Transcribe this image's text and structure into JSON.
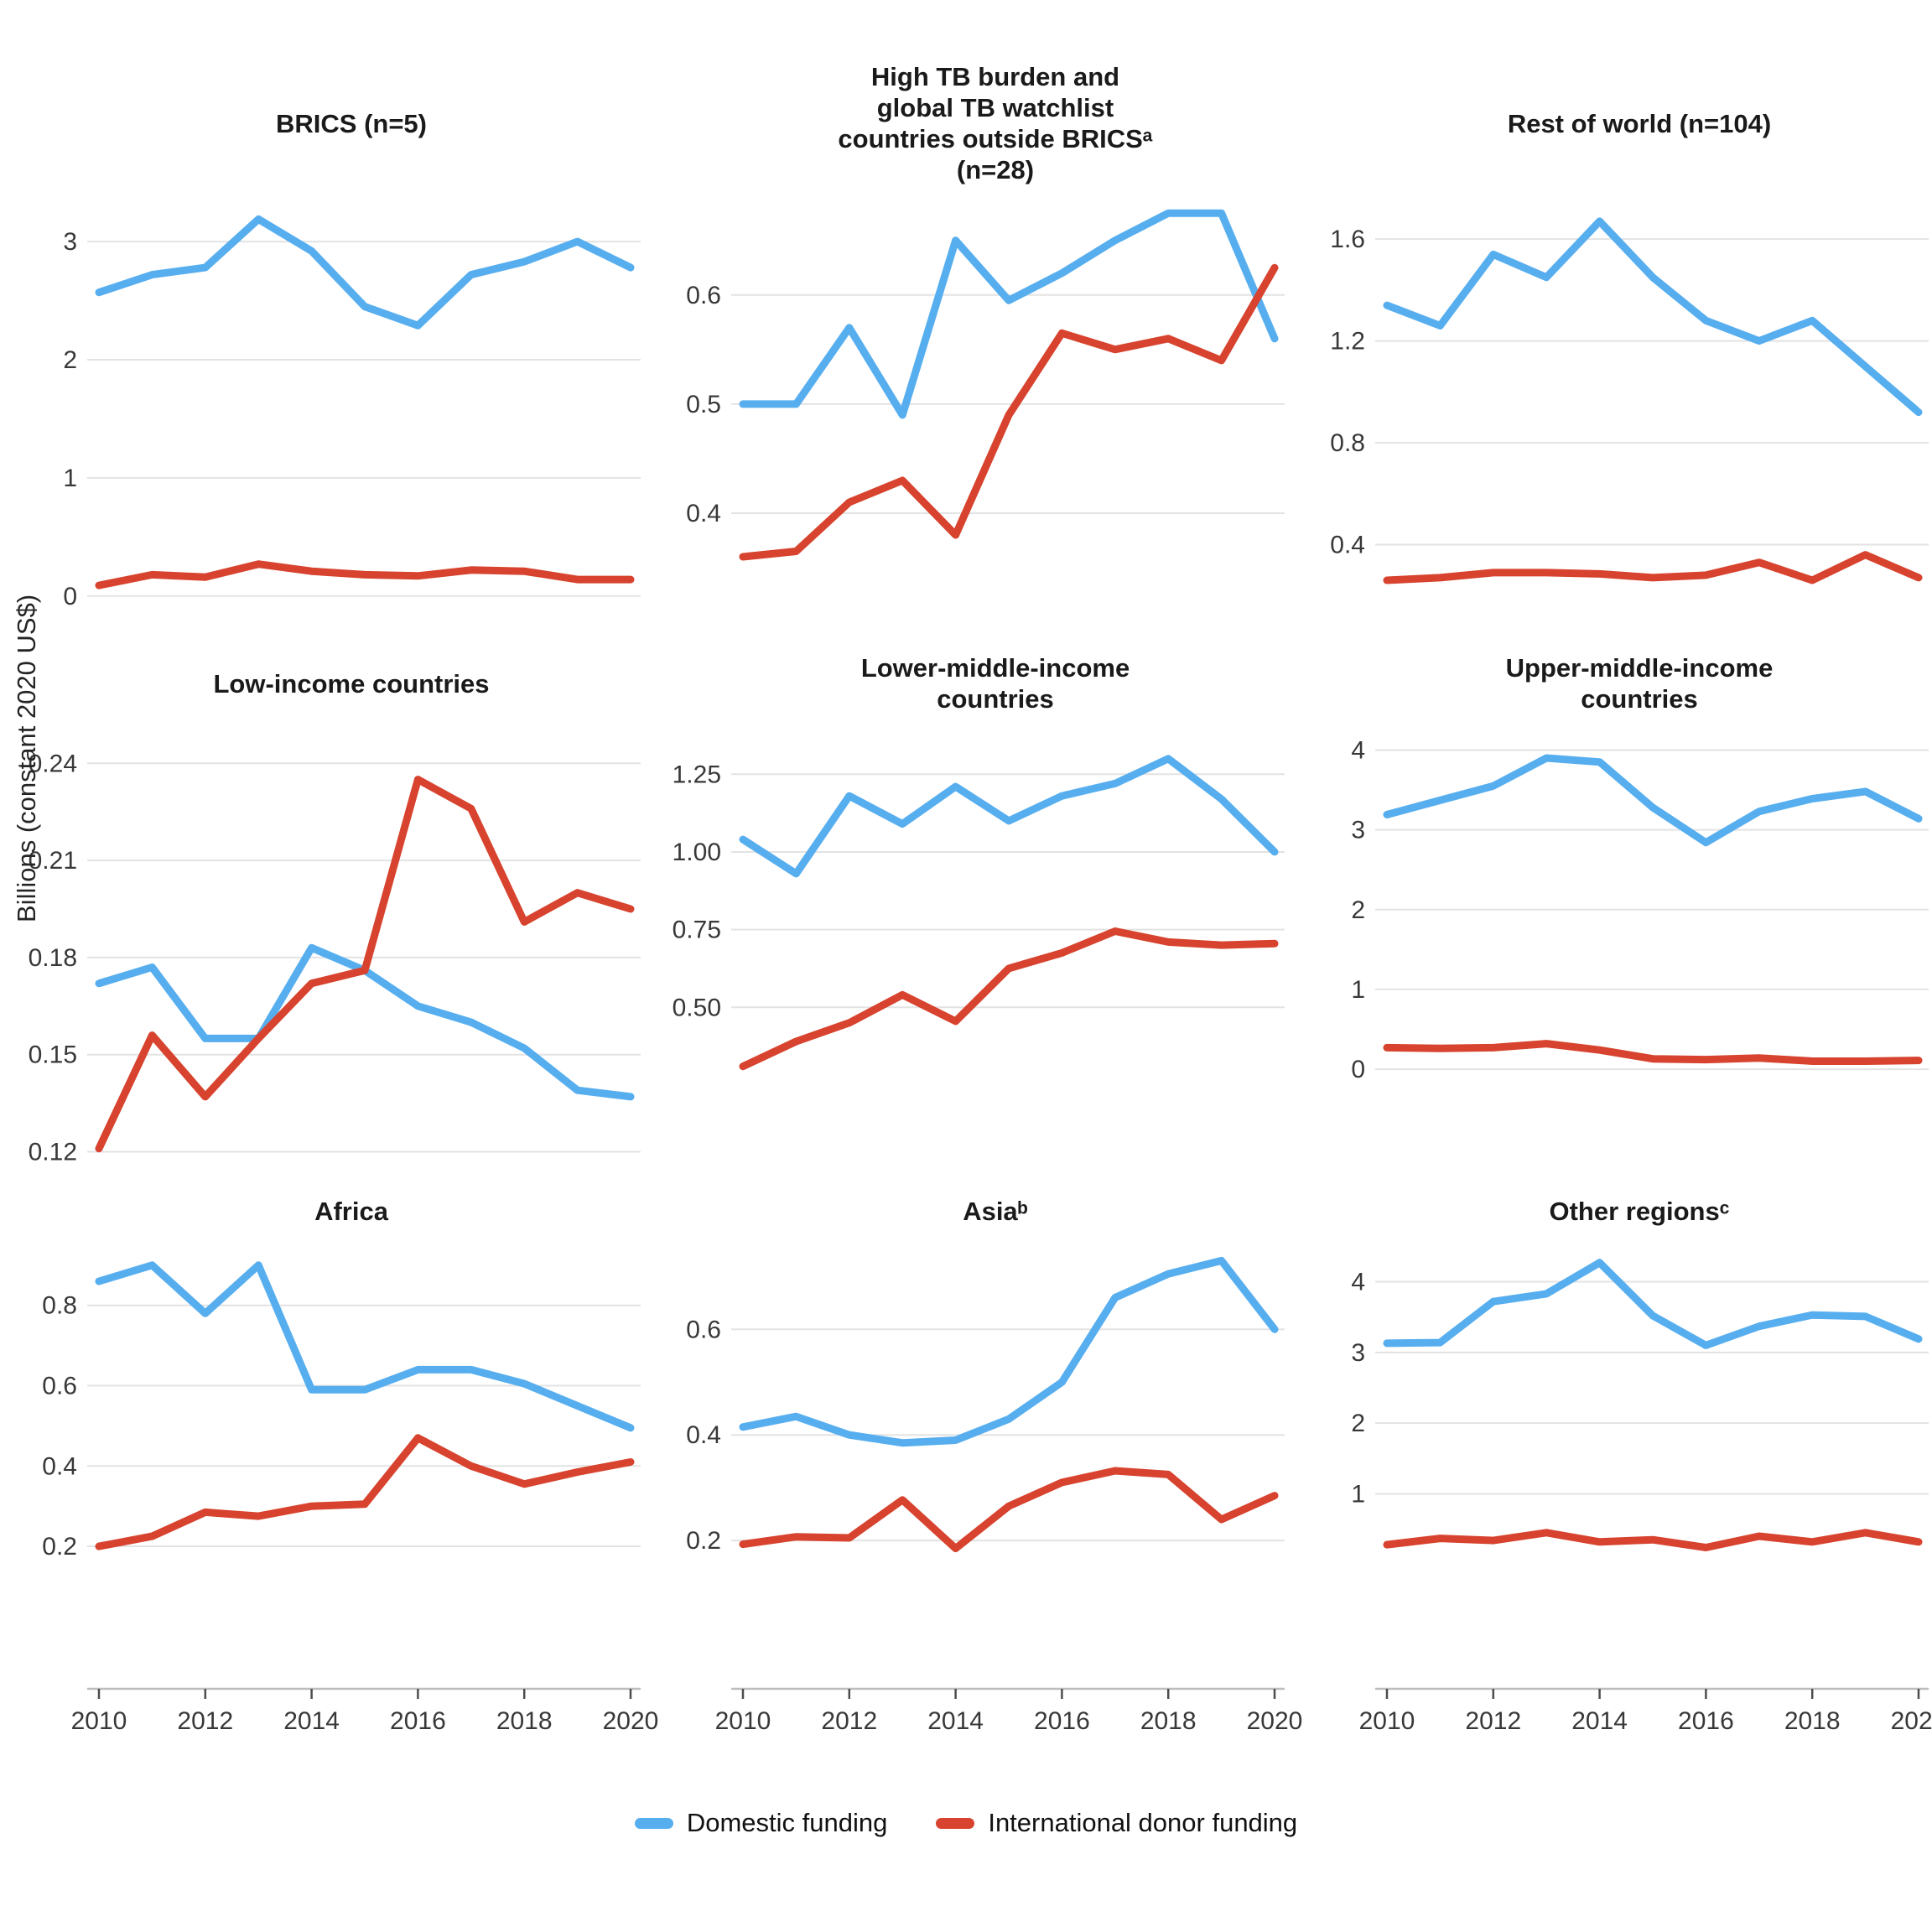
{
  "figure": {
    "y_axis_title": "Billions (constant 2020 US$)",
    "colors": {
      "domestic": "#57aeef",
      "international": "#d7432e",
      "gridline": "#e3e3e3",
      "axis_line": "#bdbdbd",
      "tick_mark": "#4d4d4d",
      "tick_label": "#383838"
    },
    "legend": [
      {
        "label": "Domestic funding",
        "color": "#57aeef"
      },
      {
        "label": "International donor funding",
        "color": "#d7432e"
      }
    ],
    "x_axis": {
      "tick_years": [
        2010,
        2012,
        2014,
        2016,
        2018,
        2020
      ],
      "tick_labels": [
        "2010",
        "2012",
        "2014",
        "2016",
        "2018",
        "2020"
      ]
    }
  },
  "chart_data": [
    {
      "type": "line",
      "title": "BRICS (n=5)",
      "x": [
        2010,
        2011,
        2012,
        2013,
        2014,
        2015,
        2016,
        2017,
        2018,
        2019,
        2020
      ],
      "yticks": [
        {
          "label": "3",
          "value": 3
        },
        {
          "label": "2",
          "value": 2
        },
        {
          "label": "1",
          "value": 1
        },
        {
          "label": "0",
          "value": 0
        }
      ],
      "ylim": [
        -0.25,
        3.37
      ],
      "show_x_axis": false,
      "series": [
        {
          "name": "Domestic funding",
          "color": "#57aeef",
          "values": [
            2.57,
            2.72,
            2.78,
            3.19,
            2.92,
            2.45,
            2.29,
            2.72,
            2.83,
            3.0,
            2.78
          ]
        },
        {
          "name": "International donor funding",
          "color": "#d7432e",
          "values": [
            0.09,
            0.18,
            0.16,
            0.27,
            0.21,
            0.18,
            0.17,
            0.22,
            0.21,
            0.14,
            0.14
          ]
        }
      ]
    },
    {
      "type": "line",
      "title": "High TB burden and\nglobal TB watchlist\ncountries outside BRICSᵃ\n(n=28)",
      "x": [
        2010,
        2011,
        2012,
        2013,
        2014,
        2015,
        2016,
        2017,
        2018,
        2019,
        2020
      ],
      "yticks": [
        {
          "label": "0.6",
          "value": 0.6
        },
        {
          "label": "0.5",
          "value": 0.5
        },
        {
          "label": "0.4",
          "value": 0.4
        }
      ],
      "ylim": [
        0.297,
        0.689
      ],
      "show_x_axis": false,
      "series": [
        {
          "name": "Domestic funding",
          "color": "#57aeef",
          "values": [
            0.5,
            0.5,
            0.57,
            0.49,
            0.65,
            0.595,
            0.62,
            0.65,
            0.675,
            0.675,
            0.56
          ]
        },
        {
          "name": "International donor funding",
          "color": "#d7432e",
          "values": [
            0.36,
            0.365,
            0.41,
            0.43,
            0.38,
            0.49,
            0.565,
            0.55,
            0.56,
            0.54,
            0.625
          ]
        }
      ]
    },
    {
      "type": "line",
      "title": "Rest of world (n=104)",
      "x": [
        2010,
        2011,
        2012,
        2013,
        2014,
        2015,
        2016,
        2017,
        2018,
        2019,
        2020
      ],
      "yticks": [
        {
          "label": "1.6",
          "value": 1.6
        },
        {
          "label": "1.2",
          "value": 1.2
        },
        {
          "label": "0.8",
          "value": 0.8
        },
        {
          "label": "0.4",
          "value": 0.4
        }
      ],
      "ylim": [
        0.082,
        1.762
      ],
      "show_x_axis": false,
      "series": [
        {
          "name": "Domestic funding",
          "color": "#57aeef",
          "values": [
            1.34,
            1.26,
            1.54,
            1.45,
            1.67,
            1.45,
            1.28,
            1.2,
            1.28,
            1.1,
            0.92
          ]
        },
        {
          "name": "International donor funding",
          "color": "#d7432e",
          "values": [
            0.26,
            0.27,
            0.29,
            0.29,
            0.285,
            0.27,
            0.28,
            0.33,
            0.26,
            0.36,
            0.27
          ]
        }
      ]
    },
    {
      "type": "line",
      "title": "Low-income countries",
      "x": [
        2010,
        2011,
        2012,
        2013,
        2014,
        2015,
        2016,
        2017,
        2018,
        2019,
        2020
      ],
      "yticks": [
        {
          "label": "0.24",
          "value": 0.24
        },
        {
          "label": "0.21",
          "value": 0.21
        },
        {
          "label": "0.18",
          "value": 0.18
        },
        {
          "label": "0.15",
          "value": 0.15
        },
        {
          "label": "0.12",
          "value": 0.12
        }
      ],
      "ylim": [
        0.1147,
        0.2468
      ],
      "show_x_axis": false,
      "series": [
        {
          "name": "Domestic funding",
          "color": "#57aeef",
          "values": [
            0.172,
            0.177,
            0.155,
            0.155,
            0.183,
            0.176,
            0.165,
            0.16,
            0.152,
            0.139,
            0.137
          ]
        },
        {
          "name": "International donor funding",
          "color": "#d7432e",
          "values": [
            0.121,
            0.156,
            0.137,
            0.155,
            0.172,
            0.176,
            0.235,
            0.226,
            0.191,
            0.2,
            0.195
          ]
        }
      ]
    },
    {
      "type": "line",
      "title": "Lower-middle-income\ncountries",
      "x": [
        2010,
        2011,
        2012,
        2013,
        2014,
        2015,
        2016,
        2017,
        2018,
        2019,
        2020
      ],
      "yticks": [
        {
          "label": "1.25",
          "value": 1.25
        },
        {
          "label": "1.00",
          "value": 1.0
        },
        {
          "label": "0.75",
          "value": 0.75
        },
        {
          "label": "0.50",
          "value": 0.5
        }
      ],
      "ylim": [
        -0.02,
        1.356
      ],
      "show_x_axis": false,
      "series": [
        {
          "name": "Domestic funding",
          "color": "#57aeef",
          "values": [
            1.04,
            0.93,
            1.18,
            1.09,
            1.21,
            1.1,
            1.18,
            1.22,
            1.3,
            1.17,
            1.0
          ]
        },
        {
          "name": "International donor funding",
          "color": "#d7432e",
          "values": [
            0.31,
            0.39,
            0.45,
            0.54,
            0.455,
            0.625,
            0.675,
            0.745,
            0.71,
            0.7,
            0.705
          ]
        }
      ]
    },
    {
      "type": "line",
      "title": "Upper-middle-income\ncountries",
      "x": [
        2010,
        2011,
        2012,
        2013,
        2014,
        2015,
        2016,
        2017,
        2018,
        2019,
        2020
      ],
      "yticks": [
        {
          "label": "4",
          "value": 4
        },
        {
          "label": "3",
          "value": 3
        },
        {
          "label": "2",
          "value": 2
        },
        {
          "label": "1",
          "value": 1
        },
        {
          "label": "0",
          "value": 0
        }
      ],
      "ylim": [
        -1.25,
        4.11
      ],
      "show_x_axis": false,
      "series": [
        {
          "name": "Domestic funding",
          "color": "#57aeef",
          "values": [
            3.19,
            3.37,
            3.55,
            3.9,
            3.85,
            3.28,
            2.84,
            3.23,
            3.39,
            3.48,
            3.14
          ]
        },
        {
          "name": "International donor funding",
          "color": "#d7432e",
          "values": [
            0.27,
            0.26,
            0.27,
            0.32,
            0.24,
            0.13,
            0.12,
            0.14,
            0.1,
            0.1,
            0.11
          ]
        }
      ]
    },
    {
      "type": "line",
      "title": "Africa",
      "x": [
        2010,
        2011,
        2012,
        2013,
        2014,
        2015,
        2016,
        2017,
        2018,
        2019,
        2020
      ],
      "yticks": [
        {
          "label": "0.8",
          "value": 0.8
        },
        {
          "label": "0.6",
          "value": 0.6
        },
        {
          "label": "0.4",
          "value": 0.4
        },
        {
          "label": "0.2",
          "value": 0.2
        }
      ],
      "ylim": [
        -0.134,
        0.931
      ],
      "show_x_axis": true,
      "series": [
        {
          "name": "Domestic funding",
          "color": "#57aeef",
          "values": [
            0.86,
            0.9,
            0.78,
            0.9,
            0.59,
            0.59,
            0.64,
            0.64,
            0.605,
            0.55,
            0.495
          ]
        },
        {
          "name": "International donor funding",
          "color": "#d7432e",
          "values": [
            0.2,
            0.225,
            0.285,
            0.275,
            0.3,
            0.305,
            0.47,
            0.4,
            0.355,
            0.385,
            0.41
          ]
        }
      ]
    },
    {
      "type": "line",
      "title": "Asiaᵇ",
      "x": [
        2010,
        2011,
        2012,
        2013,
        2014,
        2015,
        2016,
        2017,
        2018,
        2019,
        2020
      ],
      "yticks": [
        {
          "label": "0.6",
          "value": 0.6
        },
        {
          "label": "0.4",
          "value": 0.4
        },
        {
          "label": "0.2",
          "value": 0.2
        }
      ],
      "ylim": [
        -0.065,
        0.745
      ],
      "show_x_axis": true,
      "series": [
        {
          "name": "Domestic funding",
          "color": "#57aeef",
          "values": [
            0.415,
            0.435,
            0.4,
            0.385,
            0.39,
            0.43,
            0.5,
            0.66,
            0.705,
            0.73,
            0.6
          ]
        },
        {
          "name": "International donor funding",
          "color": "#d7432e",
          "values": [
            0.193,
            0.207,
            0.205,
            0.277,
            0.185,
            0.265,
            0.31,
            0.332,
            0.325,
            0.24,
            0.285
          ]
        }
      ]
    },
    {
      "type": "line",
      "title": "Other regionsᶜ",
      "x": [
        2010,
        2011,
        2012,
        2013,
        2014,
        2015,
        2016,
        2017,
        2018,
        2019,
        2020
      ],
      "yticks": [
        {
          "label": "4",
          "value": 4
        },
        {
          "label": "3",
          "value": 3
        },
        {
          "label": "2",
          "value": 2
        },
        {
          "label": "1",
          "value": 1
        }
      ],
      "ylim": [
        -1.64,
        4.41
      ],
      "show_x_axis": true,
      "series": [
        {
          "name": "Domestic funding",
          "color": "#57aeef",
          "values": [
            3.13,
            3.14,
            3.72,
            3.83,
            4.27,
            3.52,
            3.1,
            3.37,
            3.53,
            3.51,
            3.19
          ]
        },
        {
          "name": "International donor funding",
          "color": "#d7432e",
          "values": [
            0.28,
            0.37,
            0.34,
            0.45,
            0.32,
            0.35,
            0.24,
            0.4,
            0.32,
            0.45,
            0.32
          ]
        }
      ]
    }
  ]
}
